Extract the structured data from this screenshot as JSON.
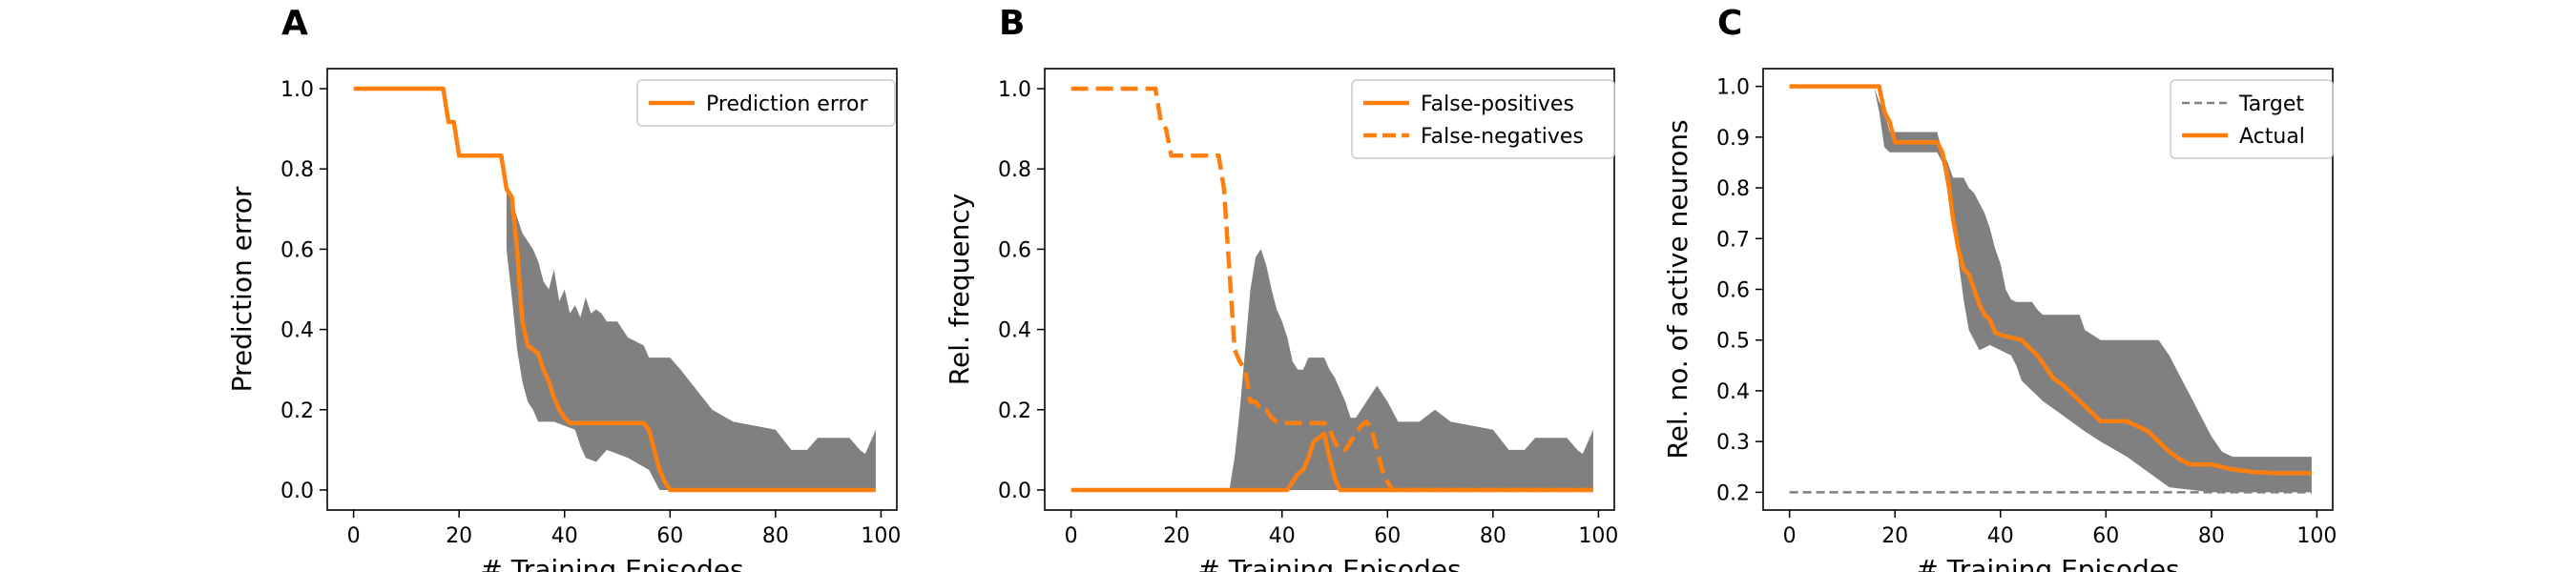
{
  "chart_data": [
    {
      "type": "line",
      "panel": "A",
      "xlabel": "# Training Episodes",
      "ylabel": "Prediction error",
      "xlim": [
        -5,
        103
      ],
      "ylim": [
        -0.05,
        1.05
      ],
      "xticks": [
        0,
        20,
        40,
        60,
        80,
        100
      ],
      "yticks": [
        0.0,
        0.2,
        0.4,
        0.6,
        0.8,
        1.0
      ],
      "ytick_format": 1,
      "grid": false,
      "legend": "top-right",
      "band": {
        "color": "#808080",
        "upper": [
          [
            29,
            0.75
          ],
          [
            30,
            0.72
          ],
          [
            31,
            0.68
          ],
          [
            32,
            0.64
          ],
          [
            33,
            0.62
          ],
          [
            34,
            0.6
          ],
          [
            35,
            0.57
          ],
          [
            36,
            0.52
          ],
          [
            37,
            0.5
          ],
          [
            38,
            0.55
          ],
          [
            39,
            0.47
          ],
          [
            40,
            0.5
          ],
          [
            41,
            0.44
          ],
          [
            42,
            0.46
          ],
          [
            43,
            0.43
          ],
          [
            44,
            0.48
          ],
          [
            45,
            0.44
          ],
          [
            46,
            0.45
          ],
          [
            47,
            0.44
          ],
          [
            48,
            0.42
          ],
          [
            50,
            0.42
          ],
          [
            51,
            0.4
          ],
          [
            52,
            0.38
          ],
          [
            55,
            0.36
          ],
          [
            56,
            0.33
          ],
          [
            60,
            0.33
          ],
          [
            62,
            0.3
          ],
          [
            65,
            0.25
          ],
          [
            68,
            0.2
          ],
          [
            72,
            0.17
          ],
          [
            80,
            0.15
          ],
          [
            83,
            0.1
          ],
          [
            86,
            0.1
          ],
          [
            88,
            0.13
          ],
          [
            94,
            0.13
          ],
          [
            96,
            0.1
          ],
          [
            97,
            0.09
          ],
          [
            98,
            0.12
          ],
          [
            99,
            0.15
          ]
        ],
        "lower": [
          [
            99,
            0
          ],
          [
            60,
            0
          ],
          [
            58,
            0
          ],
          [
            56,
            0.05
          ],
          [
            52,
            0.08
          ],
          [
            48,
            0.1
          ],
          [
            46,
            0.07
          ],
          [
            44,
            0.08
          ],
          [
            43,
            0.11
          ],
          [
            42,
            0.15
          ],
          [
            40,
            0.16
          ],
          [
            38,
            0.17
          ],
          [
            35,
            0.17
          ],
          [
            34,
            0.2
          ],
          [
            33,
            0.22
          ],
          [
            32,
            0.27
          ],
          [
            31,
            0.35
          ],
          [
            30,
            0.48
          ],
          [
            29,
            0.6
          ]
        ]
      },
      "series": [
        {
          "name": "Prediction error",
          "color": "#ff7f0e",
          "style": "solid",
          "points": [
            [
              0,
              1
            ],
            [
              17,
              1
            ],
            [
              18,
              0.917
            ],
            [
              19,
              0.917
            ],
            [
              20,
              0.833
            ],
            [
              28,
              0.833
            ],
            [
              29,
              0.75
            ],
            [
              30,
              0.73
            ],
            [
              31,
              0.6
            ],
            [
              32,
              0.42
            ],
            [
              33,
              0.36
            ],
            [
              34,
              0.35
            ],
            [
              35,
              0.34
            ],
            [
              36,
              0.3
            ],
            [
              37,
              0.27
            ],
            [
              38,
              0.23
            ],
            [
              39,
              0.2
            ],
            [
              40,
              0.18
            ],
            [
              41,
              0.167
            ],
            [
              55,
              0.167
            ],
            [
              56,
              0.15
            ],
            [
              57,
              0.1
            ],
            [
              58,
              0.05
            ],
            [
              59,
              0.02
            ],
            [
              60,
              0
            ],
            [
              99,
              0
            ]
          ]
        }
      ]
    },
    {
      "type": "line",
      "panel": "B",
      "xlabel": "# Training Episodes",
      "ylabel": "Rel. frequency",
      "xlim": [
        -5,
        103
      ],
      "ylim": [
        -0.05,
        1.05
      ],
      "xticks": [
        0,
        20,
        40,
        60,
        80,
        100
      ],
      "yticks": [
        0.0,
        0.2,
        0.4,
        0.6,
        0.8,
        1.0
      ],
      "ytick_format": 1,
      "grid": false,
      "legend": "top-right",
      "band": {
        "color": "#808080",
        "upper": [
          [
            30,
            0
          ],
          [
            31,
            0.08
          ],
          [
            32,
            0.2
          ],
          [
            33,
            0.35
          ],
          [
            34,
            0.5
          ],
          [
            35,
            0.58
          ],
          [
            36,
            0.6
          ],
          [
            37,
            0.56
          ],
          [
            38,
            0.5
          ],
          [
            39,
            0.45
          ],
          [
            40,
            0.42
          ],
          [
            41,
            0.38
          ],
          [
            42,
            0.32
          ],
          [
            43,
            0.3
          ],
          [
            44,
            0.3
          ],
          [
            45,
            0.33
          ],
          [
            48,
            0.33
          ],
          [
            49,
            0.3
          ],
          [
            50,
            0.28
          ],
          [
            51,
            0.25
          ],
          [
            52,
            0.22
          ],
          [
            53,
            0.18
          ],
          [
            54,
            0.18
          ],
          [
            56,
            0.22
          ],
          [
            58,
            0.26
          ],
          [
            60,
            0.22
          ],
          [
            62,
            0.17
          ],
          [
            66,
            0.17
          ],
          [
            69,
            0.2
          ],
          [
            72,
            0.17
          ],
          [
            80,
            0.15
          ],
          [
            83,
            0.1
          ],
          [
            86,
            0.1
          ],
          [
            88,
            0.13
          ],
          [
            94,
            0.13
          ],
          [
            96,
            0.1
          ],
          [
            97,
            0.09
          ],
          [
            98,
            0.12
          ],
          [
            99,
            0.15
          ]
        ],
        "lower": [
          [
            99,
            0
          ],
          [
            30,
            0
          ]
        ]
      },
      "series": [
        {
          "name": "False-positives",
          "color": "#ff7f0e",
          "style": "solid",
          "points": [
            [
              0,
              0
            ],
            [
              41,
              0
            ],
            [
              42,
              0.02
            ],
            [
              43,
              0.04
            ],
            [
              44,
              0.05
            ],
            [
              45,
              0.08
            ],
            [
              46,
              0.12
            ],
            [
              47,
              0.13
            ],
            [
              48,
              0.14
            ],
            [
              49,
              0.08
            ],
            [
              50,
              0.03
            ],
            [
              51,
              0
            ],
            [
              99,
              0
            ]
          ]
        },
        {
          "name": "False-negatives",
          "color": "#ff7f0e",
          "style": "dashed",
          "points": [
            [
              0,
              1
            ],
            [
              16,
              1
            ],
            [
              17,
              0.92
            ],
            [
              18,
              0.9
            ],
            [
              19,
              0.833
            ],
            [
              28,
              0.833
            ],
            [
              29,
              0.75
            ],
            [
              30,
              0.55
            ],
            [
              31,
              0.35
            ],
            [
              32,
              0.32
            ],
            [
              33,
              0.3
            ],
            [
              34,
              0.22
            ],
            [
              35,
              0.22
            ],
            [
              36,
              0.2
            ],
            [
              37,
              0.2
            ],
            [
              38,
              0.18
            ],
            [
              39,
              0.17
            ],
            [
              40,
              0.167
            ],
            [
              48,
              0.167
            ],
            [
              49,
              0.15
            ],
            [
              50,
              0.12
            ],
            [
              51,
              0.1
            ],
            [
              52,
              0.1
            ],
            [
              53,
              0.12
            ],
            [
              54,
              0.14
            ],
            [
              55,
              0.16
            ],
            [
              56,
              0.17
            ],
            [
              57,
              0.15
            ],
            [
              58,
              0.1
            ],
            [
              59,
              0.05
            ],
            [
              60,
              0.02
            ],
            [
              61,
              0
            ],
            [
              99,
              0
            ]
          ]
        }
      ]
    },
    {
      "type": "line",
      "panel": "C",
      "xlabel": "# Training Episodes",
      "ylabel": "Rel. no. of active neurons",
      "xlim": [
        -5,
        103
      ],
      "ylim": [
        0.165,
        1.035
      ],
      "xticks": [
        0,
        20,
        40,
        60,
        80,
        100
      ],
      "yticks": [
        0.2,
        0.3,
        0.4,
        0.5,
        0.6,
        0.7,
        0.8,
        0.9,
        1.0
      ],
      "ytick_format": 1,
      "grid": false,
      "legend": "top-right",
      "band": {
        "color": "#808080",
        "upper": [
          [
            16,
            1
          ],
          [
            17,
            0.97
          ],
          [
            18,
            0.95
          ],
          [
            19,
            0.91
          ],
          [
            28,
            0.91
          ],
          [
            29,
            0.87
          ],
          [
            30,
            0.85
          ],
          [
            31,
            0.82
          ],
          [
            32,
            0.82
          ],
          [
            33,
            0.82
          ],
          [
            34,
            0.8
          ],
          [
            35,
            0.79
          ],
          [
            36,
            0.77
          ],
          [
            37,
            0.75
          ],
          [
            38,
            0.72
          ],
          [
            39,
            0.68
          ],
          [
            40,
            0.65
          ],
          [
            41,
            0.6
          ],
          [
            42,
            0.58
          ],
          [
            43,
            0.575
          ],
          [
            46,
            0.575
          ],
          [
            47,
            0.56
          ],
          [
            48,
            0.55
          ],
          [
            55,
            0.55
          ],
          [
            56,
            0.52
          ],
          [
            59,
            0.5
          ],
          [
            70,
            0.5
          ],
          [
            72,
            0.47
          ],
          [
            74,
            0.43
          ],
          [
            76,
            0.39
          ],
          [
            78,
            0.35
          ],
          [
            80,
            0.31
          ],
          [
            82,
            0.28
          ],
          [
            84,
            0.27
          ],
          [
            99,
            0.27
          ]
        ],
        "lower": [
          [
            99,
            0.2
          ],
          [
            80,
            0.2
          ],
          [
            72,
            0.21
          ],
          [
            68,
            0.24
          ],
          [
            64,
            0.27
          ],
          [
            59,
            0.3
          ],
          [
            56,
            0.32
          ],
          [
            52,
            0.35
          ],
          [
            48,
            0.38
          ],
          [
            46,
            0.4
          ],
          [
            44,
            0.42
          ],
          [
            43,
            0.45
          ],
          [
            42,
            0.47
          ],
          [
            40,
            0.48
          ],
          [
            38,
            0.49
          ],
          [
            36,
            0.48
          ],
          [
            35,
            0.5
          ],
          [
            34,
            0.52
          ],
          [
            33,
            0.58
          ],
          [
            32,
            0.66
          ],
          [
            31,
            0.72
          ],
          [
            30,
            0.79
          ],
          [
            29,
            0.85
          ],
          [
            28,
            0.87
          ],
          [
            19,
            0.87
          ],
          [
            18,
            0.88
          ],
          [
            17,
            0.95
          ],
          [
            16,
            1
          ]
        ]
      },
      "series": [
        {
          "name": "Target",
          "color": "#808080",
          "style": "dashed-thin",
          "points": [
            [
              0,
              0.2
            ],
            [
              99,
              0.2
            ]
          ]
        },
        {
          "name": "Actual",
          "color": "#ff7f0e",
          "style": "solid",
          "points": [
            [
              0,
              1
            ],
            [
              17,
              1
            ],
            [
              18,
              0.95
            ],
            [
              19,
              0.93
            ],
            [
              20,
              0.89
            ],
            [
              28,
              0.89
            ],
            [
              29,
              0.87
            ],
            [
              30,
              0.82
            ],
            [
              31,
              0.74
            ],
            [
              32,
              0.68
            ],
            [
              33,
              0.64
            ],
            [
              34,
              0.63
            ],
            [
              35,
              0.6
            ],
            [
              36,
              0.57
            ],
            [
              37,
              0.55
            ],
            [
              38,
              0.54
            ],
            [
              39,
              0.515
            ],
            [
              40,
              0.51
            ],
            [
              42,
              0.505
            ],
            [
              44,
              0.5
            ],
            [
              45,
              0.49
            ],
            [
              46,
              0.48
            ],
            [
              47,
              0.47
            ],
            [
              48,
              0.455
            ],
            [
              49,
              0.44
            ],
            [
              50,
              0.425
            ],
            [
              52,
              0.41
            ],
            [
              54,
              0.39
            ],
            [
              56,
              0.37
            ],
            [
              58,
              0.35
            ],
            [
              59,
              0.34
            ],
            [
              64,
              0.34
            ],
            [
              66,
              0.33
            ],
            [
              68,
              0.32
            ],
            [
              70,
              0.3
            ],
            [
              72,
              0.28
            ],
            [
              74,
              0.265
            ],
            [
              76,
              0.255
            ],
            [
              80,
              0.255
            ],
            [
              82,
              0.25
            ],
            [
              84,
              0.245
            ],
            [
              88,
              0.24
            ],
            [
              92,
              0.238
            ],
            [
              99,
              0.238
            ]
          ]
        }
      ]
    }
  ]
}
